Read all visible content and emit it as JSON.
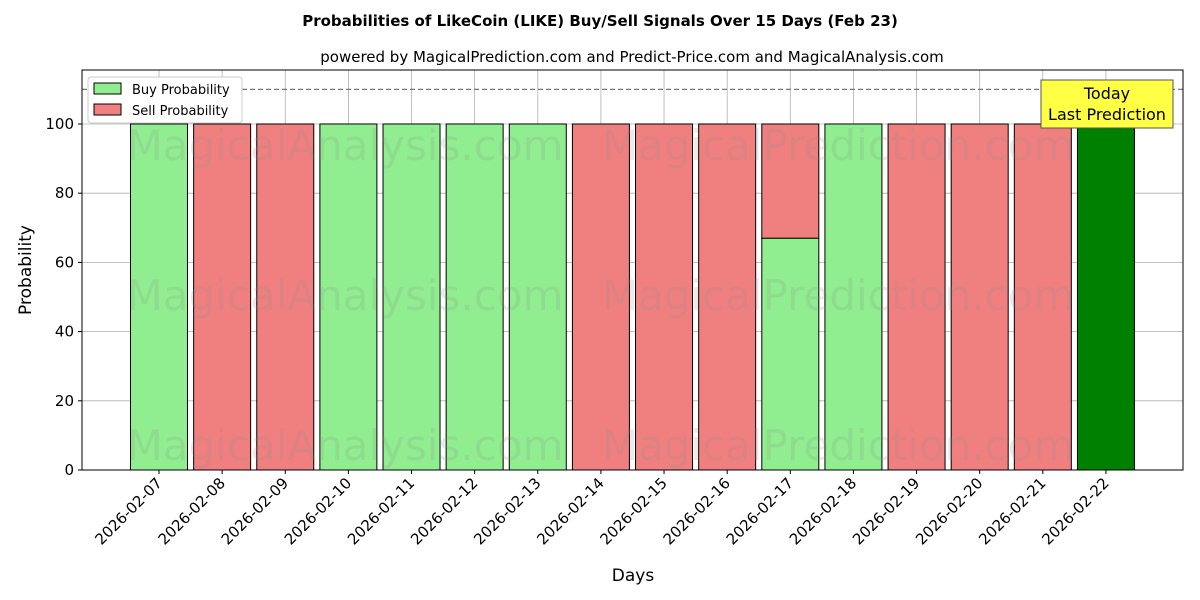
{
  "chart_data": {
    "type": "bar",
    "title": "Probabilities of LikeCoin (LIKE) Buy/Sell Signals Over 15 Days (Feb 23)",
    "subtitle": "powered by MagicalPrediction.com and Predict-Price.com and MagicalAnalysis.com",
    "xlabel": "Days",
    "ylabel": "Probability",
    "ylim": [
      0,
      115.6
    ],
    "yticks": [
      0,
      20,
      40,
      60,
      80,
      100
    ],
    "grid": true,
    "legend_placement": "top-left",
    "reference_line": 110,
    "categories": [
      "2026-02-07",
      "2026-02-08",
      "2026-02-09",
      "2026-02-10",
      "2026-02-11",
      "2026-02-12",
      "2026-02-13",
      "2026-02-14",
      "2026-02-15",
      "2026-02-16",
      "2026-02-17",
      "2026-02-18",
      "2026-02-19",
      "2026-02-20",
      "2026-02-21",
      "2026-02-22"
    ],
    "series": [
      {
        "name": "Buy Probability",
        "color": "#90ee90",
        "values": [
          100,
          0,
          0,
          100,
          100,
          100,
          100,
          0,
          0,
          0,
          67,
          100,
          0,
          0,
          0,
          100
        ]
      },
      {
        "name": "Sell Probability",
        "color": "#f08080",
        "values": [
          0,
          100,
          100,
          0,
          0,
          0,
          0,
          100,
          100,
          100,
          33,
          0,
          100,
          100,
          100,
          0
        ]
      }
    ],
    "today_index": 15,
    "today_color": "#008000",
    "annotation": {
      "line1": "Today",
      "line2": "Last Prediction",
      "bg": "#ffff44"
    },
    "watermarks": [
      "MagicalAnalysis.com",
      "MagicalPrediction.com"
    ]
  }
}
